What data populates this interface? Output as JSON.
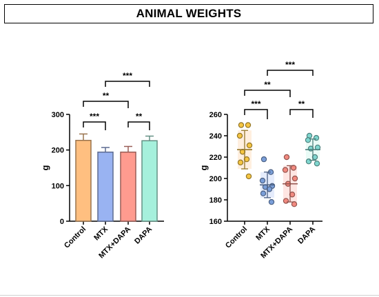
{
  "header": {
    "title": "ANIMAL WEIGHTS"
  },
  "colors": {
    "Control": "#ffbf80",
    "MTX": "#99b3f2",
    "MTX+DAPA": "#ff9b8f",
    "DAPA": "#a6f0dc",
    "Control_dot": "#f5c542",
    "MTX_dot": "#7b9fd9",
    "MTX+DAPA_dot": "#f28a80",
    "DAPA_dot": "#7fd6cf"
  },
  "chart_data": [
    {
      "type": "bar",
      "title": "",
      "xlabel": "",
      "ylabel": "g",
      "ylim": [
        0,
        300
      ],
      "yticks": [
        0,
        100,
        200,
        300
      ],
      "categories": [
        "Control",
        "MTX",
        "MTX+DAPA",
        "DAPA"
      ],
      "values": [
        227,
        194,
        194,
        226
      ],
      "errors": [
        18,
        13,
        16,
        13
      ],
      "significance": [
        {
          "from": "Control",
          "to": "MTX",
          "label": "***"
        },
        {
          "from": "MTX+DAPA",
          "to": "DAPA",
          "label": "**"
        },
        {
          "from": "Control",
          "to": "MTX+DAPA",
          "label": "**"
        },
        {
          "from": "MTX",
          "to": "DAPA",
          "label": "***"
        }
      ]
    },
    {
      "type": "scatter",
      "title": "",
      "xlabel": "",
      "ylabel": "g",
      "ylim": [
        160,
        260
      ],
      "yticks": [
        160,
        180,
        200,
        220,
        240,
        260
      ],
      "categories": [
        "Control",
        "MTX",
        "MTX+DAPA",
        "DAPA"
      ],
      "points": [
        [
          250,
          250,
          240,
          231,
          225,
          218,
          215,
          202
        ],
        [
          218,
          206,
          198,
          193,
          192,
          190,
          186,
          178
        ],
        [
          220,
          210,
          208,
          200,
          195,
          185,
          179,
          176
        ],
        [
          240,
          238,
          236,
          229,
          228,
          220,
          216,
          214
        ]
      ],
      "means": [
        227,
        194,
        195,
        227
      ],
      "sd": [
        18,
        12,
        17,
        10
      ],
      "significance": [
        {
          "from": "Control",
          "to": "MTX",
          "label": "***"
        },
        {
          "from": "MTX+DAPA",
          "to": "DAPA",
          "label": "**"
        },
        {
          "from": "Control",
          "to": "MTX+DAPA",
          "label": "**"
        },
        {
          "from": "MTX",
          "to": "DAPA",
          "label": "***"
        }
      ]
    }
  ]
}
